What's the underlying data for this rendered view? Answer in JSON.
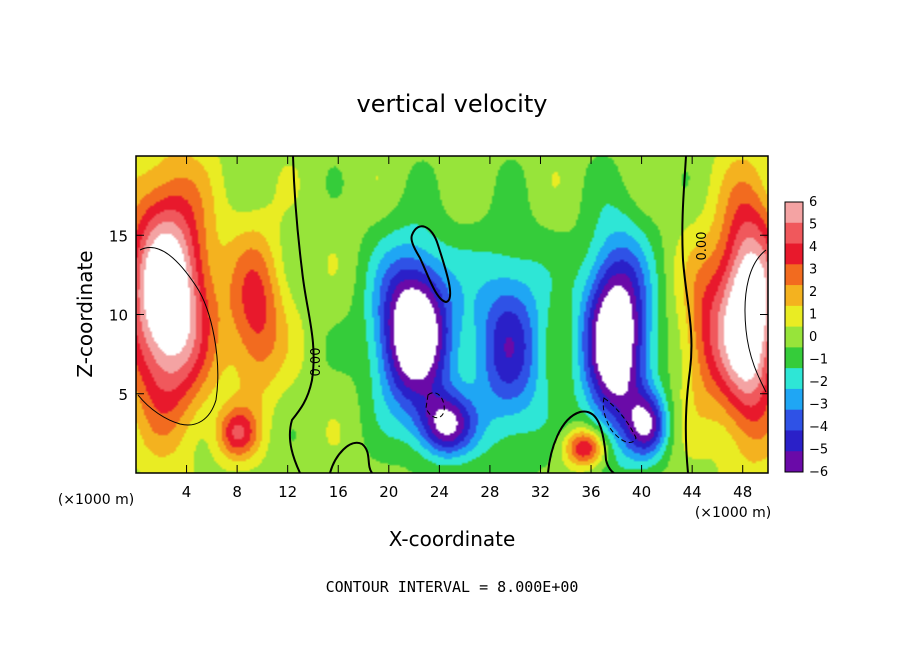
{
  "chart_data": {
    "type": "heatmap",
    "title": "vertical velocity",
    "xlabel": "X-coordinate",
    "ylabel": "Z-coordinate",
    "x_unit": "(×1000 m)",
    "y_unit": "(×1000 m)",
    "xlim": [
      0,
      50
    ],
    "ylim": [
      0,
      20
    ],
    "x_ticks": [
      4,
      8,
      12,
      16,
      20,
      24,
      28,
      32,
      36,
      40,
      44,
      48
    ],
    "x_tick_labels": [
      "4",
      "8",
      "12",
      "16",
      "20",
      "24",
      "28",
      "32",
      "36",
      "40",
      "44",
      "48"
    ],
    "y_ticks": [
      5,
      10,
      15
    ],
    "y_tick_labels": [
      "5",
      "10",
      "15"
    ],
    "colorbar": {
      "values": [
        6,
        5,
        4,
        3,
        2,
        1,
        0,
        -1,
        -2,
        -3,
        -4,
        -5,
        -6
      ],
      "labels": [
        "6",
        "5",
        "4",
        "3",
        "2",
        "1",
        "0",
        "−1",
        "−2",
        "−3",
        "−4",
        "−5",
        "−6"
      ],
      "colors": [
        "#f4a3a3",
        "#f0585c",
        "#e8192c",
        "#f26b1f",
        "#f4b21f",
        "#e9ec23",
        "#97e43a",
        "#35cc3a",
        "#2ee6d6",
        "#1fa6f4",
        "#2f52e6",
        "#2a20c8",
        "#6a0aa8"
      ]
    },
    "contour_labels": [
      "0.00",
      "0.00"
    ],
    "contour_interval": 8.0,
    "footer": "CONTOUR INTERVAL = 8.000E+00",
    "features": [
      {
        "kind": "updraft",
        "x": 2.5,
        "z": 11,
        "amp": 9,
        "sx": 3.2,
        "sz": 7
      },
      {
        "kind": "updraft",
        "x": 9.5,
        "z": 10,
        "amp": 4,
        "sx": 2.2,
        "sz": 5
      },
      {
        "kind": "updraft",
        "x": 48.5,
        "z": 10,
        "amp": 9,
        "sx": 2.4,
        "sz": 7
      },
      {
        "kind": "updraft",
        "x": 45,
        "z": 9,
        "amp": 3,
        "sx": 2,
        "sz": 5
      },
      {
        "kind": "updraft",
        "x": 35.5,
        "z": 1.6,
        "amp": 5,
        "sx": 1.6,
        "sz": 1.2
      },
      {
        "kind": "updraft",
        "x": 8,
        "z": 2.5,
        "amp": 4,
        "sx": 1.6,
        "sz": 1.6
      },
      {
        "kind": "downdraft",
        "x": 22,
        "z": 9,
        "amp": 9,
        "sx": 3,
        "sz": 5
      },
      {
        "kind": "downdraft",
        "x": 38,
        "z": 8.5,
        "amp": 9,
        "sx": 2.6,
        "sz": 6
      },
      {
        "kind": "downdraft",
        "x": 29.5,
        "z": 8,
        "amp": 5,
        "sx": 3,
        "sz": 6
      },
      {
        "kind": "downdraft",
        "x": 24.5,
        "z": 3,
        "amp": 6,
        "sx": 2.2,
        "sz": 2
      },
      {
        "kind": "downdraft",
        "x": 40.5,
        "z": 3,
        "amp": 5,
        "sx": 1.6,
        "sz": 2
      }
    ]
  }
}
